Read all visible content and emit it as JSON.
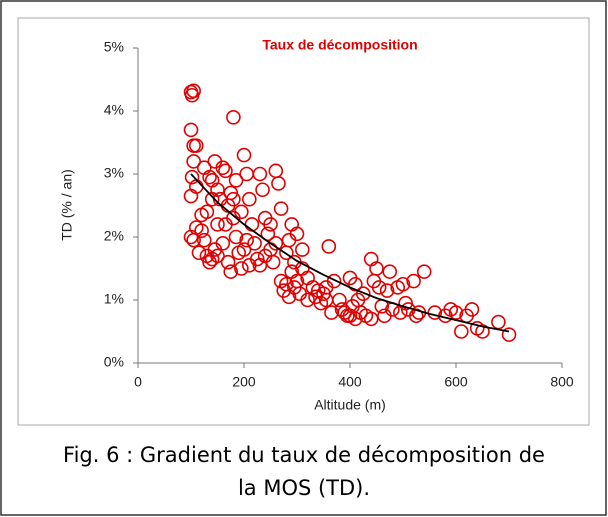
{
  "chart_data": {
    "type": "scatter",
    "title": "Taux de décomposition",
    "xlabel": "Altitude (m)",
    "ylabel": "TD  (% / an)",
    "caption": [
      "Fig. 6 : Gradient du taux de décomposition de",
      "la MOS (TD)."
    ],
    "color": "#e00000",
    "x": [
      100,
      102,
      105,
      100,
      105,
      110,
      105,
      102,
      100,
      110,
      100,
      105,
      110,
      120,
      125,
      130,
      135,
      140,
      145,
      150,
      130,
      140,
      145,
      150,
      155,
      160,
      165,
      170,
      175,
      180,
      180,
      185,
      190,
      195,
      175,
      185,
      200,
      205,
      210,
      215,
      220,
      225,
      230,
      235,
      240,
      245,
      250,
      255,
      260,
      265,
      270,
      200,
      210,
      160,
      165,
      150,
      170,
      180,
      195,
      205,
      230,
      240,
      250,
      260,
      270,
      275,
      280,
      285,
      290,
      295,
      300,
      305,
      310,
      300,
      290,
      280,
      285,
      295,
      310,
      320,
      330,
      340,
      345,
      350,
      355,
      360,
      365,
      370,
      380,
      385,
      390,
      395,
      400,
      405,
      410,
      415,
      420,
      425,
      430,
      440,
      445,
      450,
      455,
      460,
      465,
      470,
      475,
      480,
      490,
      495,
      500,
      505,
      510,
      520,
      525,
      530,
      540,
      560,
      580,
      590,
      600,
      610,
      620,
      630,
      640,
      650,
      680,
      700,
      440,
      400,
      410,
      320,
      335,
      355,
      125,
      135,
      140,
      120,
      115
    ],
    "values": [
      4.3,
      4.25,
      4.32,
      3.7,
      3.45,
      3.45,
      3.2,
      2.95,
      2.65,
      2.8,
      2.0,
      1.95,
      2.15,
      2.1,
      1.95,
      1.7,
      1.6,
      1.65,
      1.8,
      1.7,
      2.4,
      2.9,
      3.2,
      2.75,
      2.6,
      3.1,
      3.05,
      2.5,
      2.7,
      3.9,
      2.3,
      2.0,
      1.75,
      1.5,
      1.45,
      2.9,
      3.3,
      3.0,
      2.6,
      2.2,
      1.9,
      1.65,
      3.0,
      2.75,
      2.3,
      2.05,
      1.8,
      1.6,
      3.05,
      2.85,
      2.45,
      1.8,
      1.55,
      1.9,
      2.2,
      2.2,
      1.6,
      2.6,
      2.4,
      1.95,
      1.55,
      1.7,
      2.2,
      1.9,
      1.3,
      1.15,
      1.75,
      1.95,
      2.2,
      1.6,
      1.3,
      1.1,
      1.8,
      2.05,
      1.45,
      1.25,
      1.05,
      1.2,
      1.5,
      1.0,
      1.2,
      1.15,
      0.95,
      1.1,
      1.0,
      1.85,
      0.8,
      1.3,
      1.0,
      0.85,
      0.8,
      0.75,
      1.35,
      0.9,
      1.25,
      1.0,
      0.8,
      1.1,
      0.75,
      1.65,
      1.3,
      1.5,
      1.2,
      0.9,
      0.75,
      1.15,
      1.45,
      0.85,
      1.2,
      0.8,
      1.25,
      0.95,
      0.85,
      1.3,
      0.75,
      0.8,
      1.45,
      0.8,
      0.75,
      0.85,
      0.8,
      0.5,
      0.75,
      0.85,
      0.55,
      0.5,
      0.65,
      0.45,
      0.7,
      0.75,
      0.7,
      1.35,
      1.05,
      1.2,
      3.1,
      2.95,
      2.6,
      2.35,
      1.75
    ],
    "trend": {
      "color": "#000000",
      "x": [
        100,
        150,
        200,
        250,
        300,
        350,
        400,
        450,
        500,
        550,
        600,
        650,
        700
      ],
      "values": [
        3.0,
        2.55,
        2.2,
        1.9,
        1.62,
        1.4,
        1.2,
        1.03,
        0.9,
        0.78,
        0.68,
        0.58,
        0.5
      ]
    },
    "xlim": [
      0,
      800
    ],
    "xticks": [
      0,
      200,
      400,
      600,
      800
    ],
    "ylim": [
      0,
      5
    ],
    "yticks": [
      {
        "value": 0,
        "label": "0%"
      },
      {
        "value": 1,
        "label": "1%"
      },
      {
        "value": 2,
        "label": "2%"
      },
      {
        "value": 3,
        "label": "3%"
      },
      {
        "value": 4,
        "label": "4%"
      },
      {
        "value": 5,
        "label": "5%"
      }
    ]
  }
}
